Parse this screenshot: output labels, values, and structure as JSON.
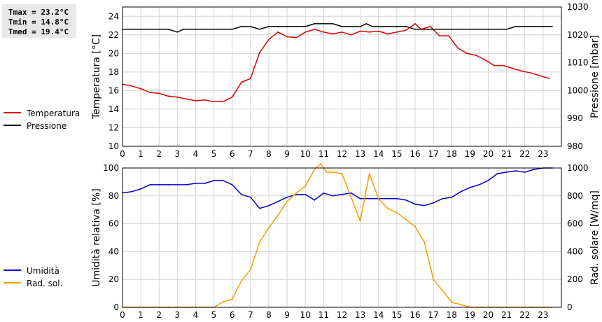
{
  "stats": {
    "tmax": "Tmax = 23.2°C",
    "tmin": "Tmin = 14.8°C",
    "tmed": "Tmed = 19.4°C"
  },
  "chart_data": [
    {
      "type": "line",
      "title": "",
      "xlabel": "",
      "ylabel": "Temperatura [°C]",
      "y2label": "Pressione [mbar]",
      "xlim": [
        0,
        24
      ],
      "xticks": [
        "0",
        "1",
        "2",
        "3",
        "4",
        "5",
        "6",
        "7",
        "8",
        "9",
        "10",
        "11",
        "12",
        "13",
        "14",
        "15",
        "16",
        "17",
        "18",
        "19",
        "20",
        "21",
        "22",
        "23"
      ],
      "ylim": [
        10,
        25
      ],
      "yticks": [
        "10",
        "12",
        "14",
        "16",
        "18",
        "20",
        "22",
        "24"
      ],
      "y2lim": [
        980,
        1030
      ],
      "y2ticks": [
        "980",
        "990",
        "1000",
        "1010",
        "1020",
        "1030"
      ],
      "grid": true,
      "legend_position": "left",
      "series": [
        {
          "name": "Temperatura",
          "axis": "left",
          "color": "#dd0000",
          "x": [
            0,
            0.5,
            1,
            1.5,
            2,
            2.5,
            3,
            3.5,
            4,
            4.5,
            5,
            5.5,
            6,
            6.5,
            7,
            7.5,
            8,
            8.5,
            9,
            9.5,
            10,
            10.5,
            11,
            11.5,
            12,
            12.5,
            13,
            13.5,
            14,
            14.5,
            15,
            15.5,
            16,
            16.33,
            16.83,
            17.33,
            17.83,
            18.33,
            18.83,
            19.33,
            19.83,
            20.33,
            20.83,
            21.33,
            21.83,
            22.33,
            22.83,
            23.33
          ],
          "values": [
            16.7,
            16.5,
            16.2,
            15.8,
            15.7,
            15.4,
            15.3,
            15.1,
            14.9,
            15.0,
            14.8,
            14.8,
            15.3,
            16.9,
            17.3,
            20.1,
            21.5,
            22.3,
            21.8,
            21.7,
            22.3,
            22.6,
            22.3,
            22.1,
            22.3,
            22.0,
            22.4,
            22.3,
            22.4,
            22.1,
            22.3,
            22.5,
            23.2,
            22.6,
            22.9,
            21.9,
            21.9,
            20.6,
            20.0,
            19.8,
            19.3,
            18.7,
            18.7,
            18.4,
            18.1,
            17.9,
            17.6,
            17.3
          ]
        },
        {
          "name": "Pressione",
          "axis": "right",
          "color": "#000000",
          "x": [
            0,
            0.5,
            1,
            1.5,
            2,
            2.5,
            3,
            3.33,
            3.67,
            4,
            4.5,
            5,
            5.5,
            6,
            6.5,
            7,
            7.5,
            8,
            8.5,
            9,
            9.5,
            10,
            10.5,
            11,
            11.5,
            12,
            12.5,
            13,
            13.33,
            13.67,
            14,
            14.5,
            15,
            15.5,
            16,
            16.5,
            17,
            17.5,
            18,
            18.5,
            19,
            19.5,
            20,
            20.5,
            21,
            21.5,
            22,
            22.5,
            23,
            23.5
          ],
          "values": [
            1022,
            1022,
            1022,
            1022,
            1022,
            1022,
            1021,
            1022,
            1022,
            1022,
            1022,
            1022,
            1022,
            1022,
            1023,
            1023,
            1022,
            1023,
            1023,
            1023,
            1023,
            1023,
            1024,
            1024,
            1024,
            1023,
            1023,
            1023,
            1024,
            1023,
            1023,
            1023,
            1023,
            1023,
            1022,
            1022,
            1022,
            1022,
            1022,
            1022,
            1022,
            1022,
            1022,
            1022,
            1022,
            1023,
            1023,
            1023,
            1023,
            1023
          ]
        }
      ]
    },
    {
      "type": "line",
      "title": "",
      "xlabel": "",
      "ylabel": "Umidità relativa [%]",
      "y2label": "Rad. solare [W/mq]",
      "xlim": [
        0,
        24
      ],
      "xticks": [
        "0",
        "1",
        "2",
        "3",
        "4",
        "5",
        "6",
        "7",
        "8",
        "9",
        "10",
        "11",
        "12",
        "13",
        "14",
        "15",
        "16",
        "17",
        "18",
        "19",
        "20",
        "21",
        "22",
        "23"
      ],
      "ylim": [
        0,
        100
      ],
      "yticks": [
        "0",
        "20",
        "40",
        "60",
        "80",
        "100"
      ],
      "y2lim": [
        0,
        1000
      ],
      "y2ticks": [
        "0",
        "200",
        "400",
        "600",
        "800",
        "1000"
      ],
      "grid": true,
      "legend_position": "left",
      "series": [
        {
          "name": "Umidità",
          "axis": "left",
          "color": "#0000cc",
          "x": [
            0,
            0.5,
            1,
            1.5,
            2,
            2.5,
            3,
            3.5,
            4,
            4.5,
            5,
            5.5,
            6,
            6.5,
            7,
            7.5,
            8,
            8.5,
            9,
            9.5,
            10,
            10.5,
            11,
            11.5,
            12,
            12.5,
            13,
            13.5,
            14,
            14.5,
            15,
            15.5,
            16,
            16.5,
            17,
            17.5,
            18,
            18.5,
            19,
            19.5,
            20,
            20.5,
            21,
            21.5,
            22,
            22.5,
            23,
            23.5
          ],
          "values": [
            82,
            83,
            85,
            88,
            88,
            88,
            88,
            88,
            89,
            89,
            91,
            91,
            88,
            81,
            79,
            71,
            73,
            76,
            79,
            81,
            81,
            77,
            82,
            80,
            81,
            82,
            78,
            78,
            78,
            78,
            78,
            77,
            74,
            73,
            75,
            78,
            79,
            83,
            86,
            88,
            91,
            96,
            97,
            98,
            97,
            99,
            100,
            100
          ]
        },
        {
          "name": "Rad. sol.",
          "axis": "right",
          "color": "#f0a000",
          "x": [
            0,
            0.5,
            1,
            1.5,
            2,
            2.5,
            3,
            3.5,
            4,
            4.5,
            5,
            5.5,
            6,
            6.5,
            7,
            7.5,
            8,
            8.5,
            9,
            9.5,
            10,
            10.5,
            10.83,
            11.17,
            11.5,
            12,
            12.5,
            13,
            13.5,
            14,
            14.5,
            15,
            15.5,
            16,
            16.5,
            17,
            17.5,
            18,
            18.5,
            19,
            19.33,
            19.67,
            20,
            20.5,
            21,
            21.5,
            22,
            22.5,
            23,
            23.5
          ],
          "values": [
            0,
            0,
            0,
            0,
            0,
            0,
            0,
            0,
            0,
            0,
            0,
            40,
            60,
            190,
            270,
            470,
            570,
            660,
            760,
            820,
            870,
            990,
            1030,
            970,
            970,
            960,
            790,
            620,
            960,
            780,
            710,
            680,
            630,
            580,
            470,
            200,
            120,
            35,
            20,
            0,
            0,
            0,
            0,
            0,
            0,
            0,
            0,
            0,
            0,
            0
          ]
        }
      ]
    }
  ]
}
